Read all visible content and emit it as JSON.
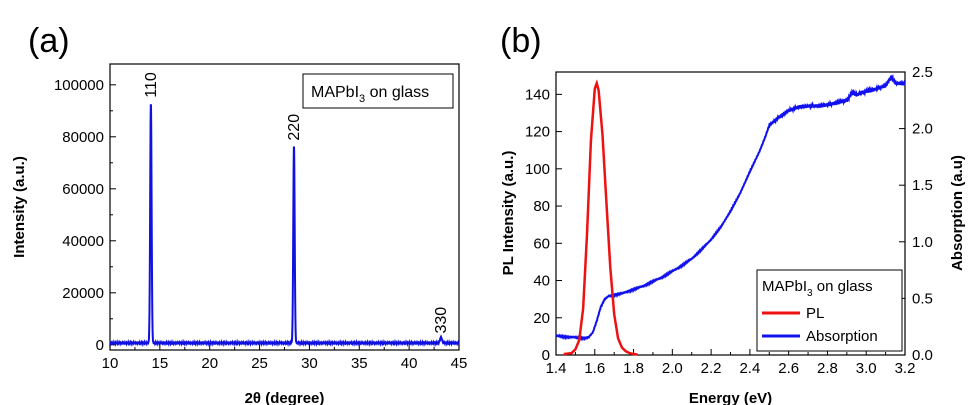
{
  "chart_data": [
    {
      "panel_label": "(a)",
      "type": "line",
      "xlabel": "2θ (degree)",
      "ylabel": "Intensity (a.u.)",
      "xlim": [
        10,
        45
      ],
      "ylim": [
        -2000,
        108000
      ],
      "xticks": [
        "10",
        "15",
        "20",
        "25",
        "30",
        "35",
        "40",
        "45"
      ],
      "yticks": [
        "0",
        "20000",
        "40000",
        "60000",
        "80000",
        "100000"
      ],
      "grid": false,
      "legend": {
        "placement": "top-right",
        "text_prefix": "MAPbI",
        "text_sub": "3",
        "text_suffix": " on glass"
      },
      "color": "#1010e0",
      "baseline": 700,
      "peaks": [
        {
          "x": 14.1,
          "y": 93500,
          "label": "110"
        },
        {
          "x": 28.45,
          "y": 77000,
          "label": "220"
        },
        {
          "x": 43.2,
          "y": 2800,
          "label": "330"
        }
      ]
    },
    {
      "panel_label": "(b)",
      "type": "line",
      "xlabel": "Energy (eV)",
      "ylabel": "PL Intensity (a.u.)",
      "ylabel_right": "Absorption (a.u)",
      "xlim": [
        1.4,
        3.2
      ],
      "ylim": [
        0,
        152
      ],
      "ylim_right": [
        0,
        2.5
      ],
      "xticks": [
        "1.4",
        "1.6",
        "1.8",
        "2.0",
        "2.2",
        "2.4",
        "2.6",
        "2.8",
        "3.0",
        "3.2"
      ],
      "yticks": [
        "0",
        "20",
        "40",
        "60",
        "80",
        "100",
        "120",
        "140"
      ],
      "yticks_right": [
        "0.0",
        "0.5",
        "1.0",
        "1.5",
        "2.0",
        "2.5"
      ],
      "grid": false,
      "legend": {
        "placement": "bottom-right",
        "title_prefix": "MAPbI",
        "title_sub": "3",
        "title_suffix": " on glass",
        "entries": [
          "PL",
          "Absorption"
        ]
      },
      "series": [
        {
          "name": "PL",
          "color": "#ee1111",
          "x": [
            1.44,
            1.48,
            1.5,
            1.52,
            1.54,
            1.56,
            1.58,
            1.6,
            1.61,
            1.62,
            1.64,
            1.66,
            1.68,
            1.7,
            1.72,
            1.74,
            1.76,
            1.78,
            1.8,
            1.82
          ],
          "y": [
            0.5,
            1,
            3,
            8,
            25,
            65,
            115,
            143,
            146,
            142,
            118,
            82,
            47,
            22,
            9,
            4,
            2,
            1,
            0.5,
            0.3
          ]
        },
        {
          "name": "Absorption",
          "color": "#1111ee",
          "axis": "right",
          "x": [
            1.4,
            1.44,
            1.48,
            1.52,
            1.55,
            1.57,
            1.59,
            1.61,
            1.63,
            1.65,
            1.67,
            1.7,
            1.75,
            1.8,
            1.85,
            1.9,
            1.95,
            2.0,
            2.05,
            2.1,
            2.15,
            2.2,
            2.25,
            2.3,
            2.35,
            2.4,
            2.45,
            2.48,
            2.5,
            2.55,
            2.6,
            2.65,
            2.7,
            2.75,
            2.8,
            2.85,
            2.9,
            2.93,
            2.95,
            3.0,
            3.05,
            3.1,
            3.13,
            3.15,
            3.2
          ],
          "y": [
            0.17,
            0.16,
            0.16,
            0.15,
            0.15,
            0.16,
            0.2,
            0.3,
            0.42,
            0.49,
            0.52,
            0.53,
            0.55,
            0.58,
            0.61,
            0.65,
            0.69,
            0.74,
            0.79,
            0.85,
            0.93,
            1.02,
            1.13,
            1.27,
            1.43,
            1.62,
            1.8,
            1.93,
            2.03,
            2.1,
            2.16,
            2.19,
            2.2,
            2.2,
            2.21,
            2.23,
            2.25,
            2.32,
            2.3,
            2.33,
            2.35,
            2.38,
            2.46,
            2.4,
            2.4
          ]
        }
      ]
    }
  ]
}
